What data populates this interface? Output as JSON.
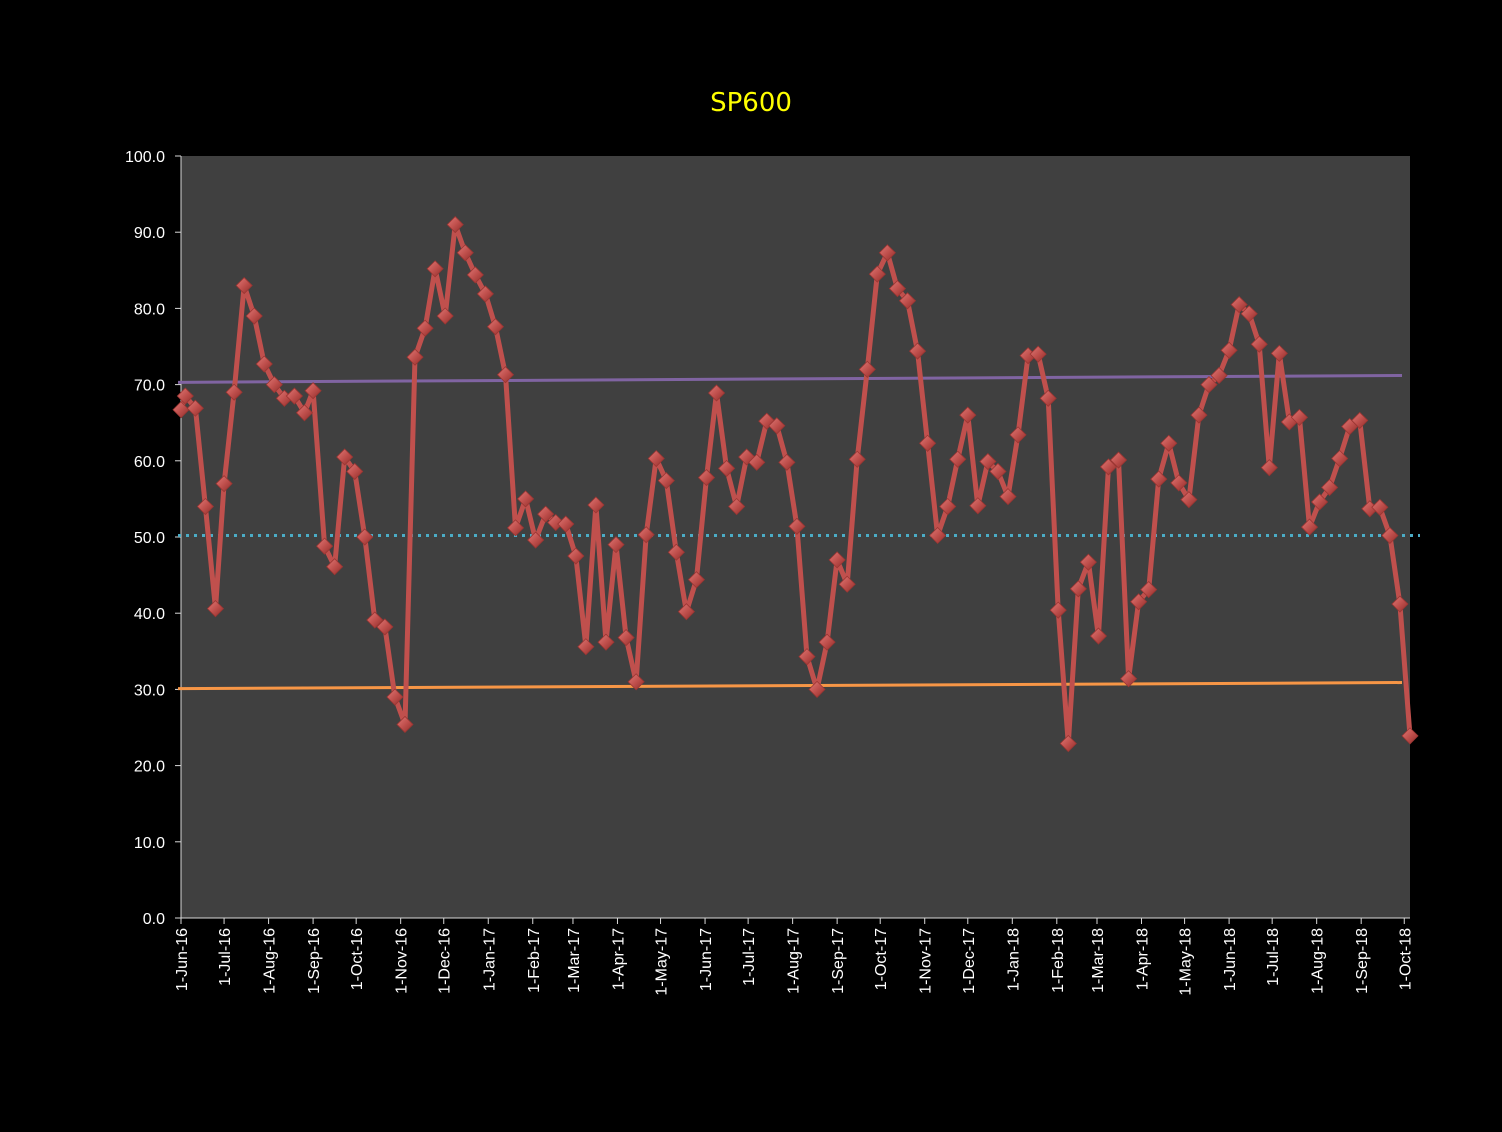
{
  "chart_data": {
    "type": "line",
    "title": "SP600",
    "xlabel": "",
    "ylabel": "",
    "ylim": [
      0,
      100
    ],
    "y_ticks": [
      "0.0",
      "10.0",
      "20.0",
      "30.0",
      "40.0",
      "50.0",
      "60.0",
      "70.0",
      "80.0",
      "90.0",
      "100.0"
    ],
    "x_range": [
      "2016-06-01",
      "2018-10-05"
    ],
    "x_ticks": [
      {
        "date": "2016-06-01",
        "label": "1-Jun-16"
      },
      {
        "date": "2016-07-01",
        "label": "1-Jul-16"
      },
      {
        "date": "2016-08-01",
        "label": "1-Aug-16"
      },
      {
        "date": "2016-09-01",
        "label": "1-Sep-16"
      },
      {
        "date": "2016-10-01",
        "label": "1-Oct-16"
      },
      {
        "date": "2016-11-01",
        "label": "1-Nov-16"
      },
      {
        "date": "2016-12-01",
        "label": "1-Dec-16"
      },
      {
        "date": "2017-01-01",
        "label": "1-Jan-17"
      },
      {
        "date": "2017-02-01",
        "label": "1-Feb-17"
      },
      {
        "date": "2017-03-01",
        "label": "1-Mar-17"
      },
      {
        "date": "2017-04-01",
        "label": "1-Apr-17"
      },
      {
        "date": "2017-05-01",
        "label": "1-May-17"
      },
      {
        "date": "2017-06-01",
        "label": "1-Jun-17"
      },
      {
        "date": "2017-07-01",
        "label": "1-Jul-17"
      },
      {
        "date": "2017-08-01",
        "label": "1-Aug-17"
      },
      {
        "date": "2017-09-01",
        "label": "1-Sep-17"
      },
      {
        "date": "2017-10-01",
        "label": "1-Oct-17"
      },
      {
        "date": "2017-11-01",
        "label": "1-Nov-17"
      },
      {
        "date": "2017-12-01",
        "label": "1-Dec-17"
      },
      {
        "date": "2018-01-01",
        "label": "1-Jan-18"
      },
      {
        "date": "2018-02-01",
        "label": "1-Feb-18"
      },
      {
        "date": "2018-03-01",
        "label": "1-Mar-18"
      },
      {
        "date": "2018-04-01",
        "label": "1-Apr-18"
      },
      {
        "date": "2018-05-01",
        "label": "1-May-18"
      },
      {
        "date": "2018-06-01",
        "label": "1-Jun-18"
      },
      {
        "date": "2018-07-01",
        "label": "1-Jul-18"
      },
      {
        "date": "2018-08-01",
        "label": "1-Aug-18"
      },
      {
        "date": "2018-09-01",
        "label": "1-Sep-18"
      },
      {
        "date": "2018-10-01",
        "label": "1-Oct-18"
      }
    ],
    "series": [
      {
        "color": "#c0504d",
        "marker": "diamond",
        "x": [
          "2016-06-01",
          "2016-06-04",
          "2016-06-11",
          "2016-06-18",
          "2016-06-25",
          "2016-07-01",
          "2016-07-08",
          "2016-07-15",
          "2016-07-22",
          "2016-07-29",
          "2016-08-05",
          "2016-08-12",
          "2016-08-19",
          "2016-08-26",
          "2016-09-01",
          "2016-09-09",
          "2016-09-16",
          "2016-09-23",
          "2016-09-30",
          "2016-10-07",
          "2016-10-14",
          "2016-10-21",
          "2016-10-28",
          "2016-11-04",
          "2016-11-11",
          "2016-11-18",
          "2016-11-25",
          "2016-12-02",
          "2016-12-09",
          "2016-12-16",
          "2016-12-23",
          "2016-12-30",
          "2017-01-06",
          "2017-01-13",
          "2017-01-20",
          "2017-01-27",
          "2017-02-03",
          "2017-02-10",
          "2017-02-17",
          "2017-02-24",
          "2017-03-03",
          "2017-03-10",
          "2017-03-17",
          "2017-03-24",
          "2017-03-31",
          "2017-04-07",
          "2017-04-14",
          "2017-04-21",
          "2017-04-28",
          "2017-05-05",
          "2017-05-12",
          "2017-05-19",
          "2017-05-26",
          "2017-06-02",
          "2017-06-09",
          "2017-06-16",
          "2017-06-23",
          "2017-06-30",
          "2017-07-07",
          "2017-07-14",
          "2017-07-21",
          "2017-07-28",
          "2017-08-04",
          "2017-08-11",
          "2017-08-18",
          "2017-08-25",
          "2017-09-01",
          "2017-09-08",
          "2017-09-15",
          "2017-09-22",
          "2017-09-29",
          "2017-10-06",
          "2017-10-13",
          "2017-10-20",
          "2017-10-27",
          "2017-11-03",
          "2017-11-10",
          "2017-11-17",
          "2017-11-24",
          "2017-12-01",
          "2017-12-08",
          "2017-12-15",
          "2017-12-22",
          "2017-12-29",
          "2018-01-05",
          "2018-01-12",
          "2018-01-19",
          "2018-01-26",
          "2018-02-02",
          "2018-02-09",
          "2018-02-16",
          "2018-02-23",
          "2018-03-02",
          "2018-03-09",
          "2018-03-16",
          "2018-03-23",
          "2018-03-30",
          "2018-04-06",
          "2018-04-13",
          "2018-04-20",
          "2018-04-27",
          "2018-05-04",
          "2018-05-11",
          "2018-05-18",
          "2018-05-25",
          "2018-06-01",
          "2018-06-08",
          "2018-06-15",
          "2018-06-22",
          "2018-06-29",
          "2018-07-06",
          "2018-07-13",
          "2018-07-20",
          "2018-07-27",
          "2018-08-03",
          "2018-08-10",
          "2018-08-17",
          "2018-08-24",
          "2018-08-31",
          "2018-09-07",
          "2018-09-14",
          "2018-09-21",
          "2018-09-28",
          "2018-10-05"
        ],
        "values": [
          66.7,
          68.5,
          66.9,
          54.0,
          40.6,
          57.0,
          69.0,
          83.0,
          79.0,
          72.7,
          70.0,
          68.2,
          68.5,
          66.3,
          69.2,
          48.8,
          46.1,
          60.5,
          58.6,
          50.0,
          39.1,
          38.2,
          29.0,
          25.4,
          73.6,
          77.4,
          85.2,
          79.0,
          91.0,
          87.3,
          84.4,
          81.9,
          77.6,
          71.3,
          51.2,
          55.0,
          49.6,
          53.0,
          51.9,
          51.7,
          47.5,
          35.6,
          54.2,
          36.2,
          49.0,
          36.8,
          31.0,
          50.3,
          60.3,
          57.4,
          48.0,
          40.2,
          44.4,
          57.8,
          68.9,
          59.0,
          54.0,
          60.5,
          59.8,
          65.2,
          64.6,
          59.8,
          51.4,
          34.3,
          30.0,
          36.2,
          47.0,
          43.8,
          60.2,
          72.0,
          84.5,
          87.3,
          82.6,
          81.0,
          74.4,
          62.3,
          50.2,
          54.0,
          60.2,
          66.0,
          54.1,
          59.9,
          58.6,
          55.3,
          63.4,
          73.8,
          74.0,
          68.2,
          40.4,
          22.9,
          43.2,
          46.7,
          37.0,
          59.2,
          60.1,
          31.4,
          41.5,
          43.1,
          57.6,
          62.3,
          57.1,
          54.9,
          66.0,
          70.0,
          71.2,
          74.5,
          80.5,
          79.3,
          75.3,
          59.1,
          74.1,
          65.1,
          65.7,
          51.3,
          54.6,
          56.5,
          60.3,
          64.5,
          65.3,
          53.7,
          53.9,
          50.2,
          41.2,
          23.9
        ]
      }
    ],
    "reference_lines": [
      {
        "color": "#8064a2",
        "from": 70.3,
        "to": 71.2,
        "style": "solid"
      },
      {
        "color": "#4bacc6",
        "from": 50.2,
        "to": 50.2,
        "style": "dotted"
      },
      {
        "color": "#f79646",
        "from": 30.1,
        "to": 30.9,
        "style": "solid"
      }
    ],
    "grid": false,
    "legend": "none",
    "colors": {
      "page_background": "#000000",
      "plot_background": "#404040",
      "title": "#ffff00",
      "axis_text": "#ffffff",
      "axis_line": "#d9d9d9"
    }
  }
}
